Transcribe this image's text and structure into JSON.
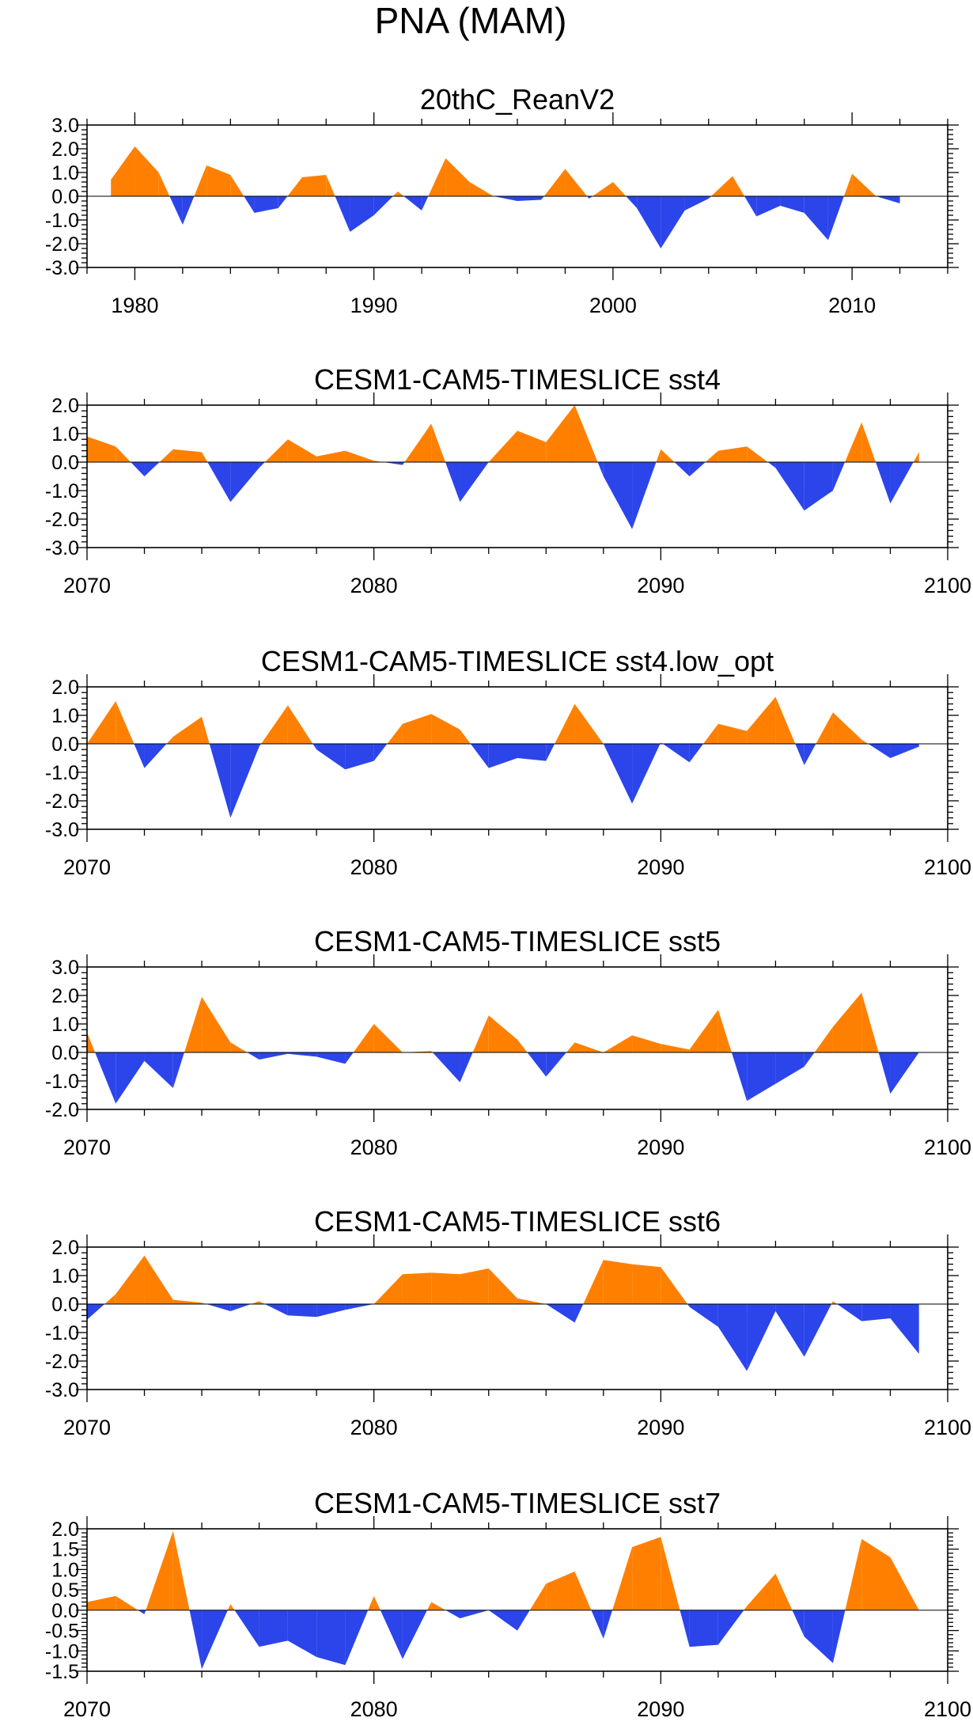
{
  "title": "PNA (MAM)",
  "colors": {
    "positive": "#ff8000",
    "negative": "#2b45ea",
    "frame": "#000000",
    "zero_line": "#000000"
  },
  "chart_data": [
    {
      "type": "area",
      "title": "20thC_ReanV2",
      "x": [
        1979,
        1980,
        1981,
        1982,
        1983,
        1984,
        1985,
        1986,
        1987,
        1988,
        1989,
        1990,
        1991,
        1992,
        1993,
        1994,
        1995,
        1996,
        1997,
        1998,
        1999,
        2000,
        2001,
        2002,
        2003,
        2004,
        2005,
        2006,
        2007,
        2008,
        2009,
        2010,
        2011,
        2012
      ],
      "values": [
        0.7,
        2.1,
        1.0,
        -1.2,
        1.3,
        0.9,
        -0.7,
        -0.5,
        0.8,
        0.9,
        -1.5,
        -0.8,
        0.2,
        -0.6,
        1.6,
        0.6,
        0.0,
        -0.2,
        -0.15,
        1.15,
        -0.1,
        0.6,
        -0.5,
        -2.2,
        -0.6,
        -0.1,
        0.85,
        -0.85,
        -0.4,
        -0.7,
        -1.85,
        0.95,
        0.0,
        -0.3
      ],
      "xlim": [
        1978,
        2014
      ],
      "xticks": [
        1980,
        1990,
        2000,
        2010
      ],
      "xtick_labels": [
        "1980",
        "1990",
        "2000",
        "2010"
      ],
      "ylim": [
        -3.0,
        3.0
      ],
      "yticks": [
        -3.0,
        -2.0,
        -1.0,
        0.0,
        1.0,
        2.0,
        3.0
      ],
      "ytick_labels": [
        "-3.0",
        "-2.0",
        "-1.0",
        "0.0",
        "1.0",
        "2.0",
        "3.0"
      ]
    },
    {
      "type": "area",
      "title": "CESM1-CAM5-TIMESLICE sst4",
      "x": [
        2070,
        2071,
        2072,
        2073,
        2074,
        2075,
        2076,
        2077,
        2078,
        2079,
        2080,
        2081,
        2082,
        2083,
        2084,
        2085,
        2086,
        2087,
        2088,
        2089,
        2090,
        2091,
        2092,
        2093,
        2094,
        2095,
        2096,
        2097,
        2098,
        2099
      ],
      "values": [
        0.9,
        0.55,
        -0.5,
        0.45,
        0.35,
        -1.4,
        -0.2,
        0.8,
        0.2,
        0.4,
        0.05,
        -0.1,
        1.35,
        -1.4,
        0.0,
        1.1,
        0.7,
        2.0,
        -0.5,
        -2.35,
        0.45,
        -0.5,
        0.4,
        0.55,
        -0.2,
        -1.7,
        -1.0,
        1.4,
        -1.45,
        0.35
      ],
      "xlim": [
        2070,
        2100
      ],
      "xticks": [
        2070,
        2080,
        2090,
        2100
      ],
      "xtick_labels": [
        "2070",
        "2080",
        "2090",
        "2100"
      ],
      "ylim": [
        -3.0,
        2.0
      ],
      "yticks": [
        -3.0,
        -2.0,
        -1.0,
        0.0,
        1.0,
        2.0
      ],
      "ytick_labels": [
        "-3.0",
        "-2.0",
        "-1.0",
        "0.0",
        "1.0",
        "2.0"
      ]
    },
    {
      "type": "area",
      "title": "CESM1-CAM5-TIMESLICE sst4.low_opt",
      "x": [
        2070,
        2071,
        2072,
        2073,
        2074,
        2075,
        2076,
        2077,
        2078,
        2079,
        2080,
        2081,
        2082,
        2083,
        2084,
        2085,
        2086,
        2087,
        2088,
        2089,
        2090,
        2091,
        2092,
        2093,
        2094,
        2095,
        2096,
        2097,
        2098,
        2099
      ],
      "values": [
        0.0,
        1.5,
        -0.85,
        0.25,
        0.95,
        -2.6,
        -0.1,
        1.35,
        -0.2,
        -0.9,
        -0.6,
        0.7,
        1.05,
        0.5,
        -0.85,
        -0.5,
        -0.6,
        1.4,
        0.0,
        -2.1,
        0.05,
        -0.65,
        0.7,
        0.45,
        1.65,
        -0.75,
        1.1,
        0.15,
        -0.5,
        -0.1
      ],
      "xlim": [
        2070,
        2100
      ],
      "xticks": [
        2070,
        2080,
        2090,
        2100
      ],
      "xtick_labels": [
        "2070",
        "2080",
        "2090",
        "2100"
      ],
      "ylim": [
        -3.0,
        2.0
      ],
      "yticks": [
        -3.0,
        -2.0,
        -1.0,
        0.0,
        1.0,
        2.0
      ],
      "ytick_labels": [
        "-3.0",
        "-2.0",
        "-1.0",
        "0.0",
        "1.0",
        "2.0"
      ]
    },
    {
      "type": "area",
      "title": "CESM1-CAM5-TIMESLICE sst5",
      "x": [
        2070,
        2071,
        2072,
        2073,
        2074,
        2075,
        2076,
        2077,
        2078,
        2079,
        2080,
        2081,
        2082,
        2083,
        2084,
        2085,
        2086,
        2087,
        2088,
        2089,
        2090,
        2091,
        2092,
        2093,
        2094,
        2095,
        2096,
        2097,
        2098,
        2099
      ],
      "values": [
        0.7,
        -1.8,
        -0.3,
        -1.25,
        1.95,
        0.35,
        -0.25,
        -0.05,
        -0.15,
        -0.4,
        1.0,
        0.0,
        0.05,
        -1.05,
        1.3,
        0.45,
        -0.85,
        0.35,
        0.0,
        0.6,
        0.3,
        0.1,
        1.5,
        -1.7,
        -1.1,
        -0.5,
        0.9,
        2.1,
        -1.45,
        0.0
      ],
      "xlim": [
        2070,
        2100
      ],
      "xticks": [
        2070,
        2080,
        2090,
        2100
      ],
      "xtick_labels": [
        "2070",
        "2080",
        "2090",
        "2100"
      ],
      "ylim": [
        -2.0,
        3.0
      ],
      "yticks": [
        -2.0,
        -1.0,
        0.0,
        1.0,
        2.0,
        3.0
      ],
      "ytick_labels": [
        "-2.0",
        "-1.0",
        "0.0",
        "1.0",
        "2.0",
        "3.0"
      ]
    },
    {
      "type": "area",
      "title": "CESM1-CAM5-TIMESLICE sst6",
      "x": [
        2070,
        2071,
        2072,
        2073,
        2074,
        2075,
        2076,
        2077,
        2078,
        2079,
        2080,
        2081,
        2082,
        2083,
        2084,
        2085,
        2086,
        2087,
        2088,
        2089,
        2090,
        2091,
        2092,
        2093,
        2094,
        2095,
        2096,
        2097,
        2098,
        2099
      ],
      "values": [
        -0.55,
        0.35,
        1.7,
        0.15,
        0.05,
        -0.25,
        0.1,
        -0.4,
        -0.45,
        -0.2,
        0.0,
        1.05,
        1.1,
        1.05,
        1.25,
        0.2,
        0.0,
        -0.65,
        1.55,
        1.4,
        1.3,
        -0.1,
        -0.8,
        -2.35,
        -0.25,
        -1.85,
        0.1,
        -0.6,
        -0.5,
        -1.75
      ],
      "xlim": [
        2070,
        2100
      ],
      "xticks": [
        2070,
        2080,
        2090,
        2100
      ],
      "xtick_labels": [
        "2070",
        "2080",
        "2090",
        "2100"
      ],
      "ylim": [
        -3.0,
        2.0
      ],
      "yticks": [
        -3.0,
        -2.0,
        -1.0,
        0.0,
        1.0,
        2.0
      ],
      "ytick_labels": [
        "-3.0",
        "-2.0",
        "-1.0",
        "0.0",
        "1.0",
        "2.0"
      ]
    },
    {
      "type": "area",
      "title": "CESM1-CAM5-TIMESLICE sst7",
      "x": [
        2070,
        2071,
        2072,
        2073,
        2074,
        2075,
        2076,
        2077,
        2078,
        2079,
        2080,
        2081,
        2082,
        2083,
        2084,
        2085,
        2086,
        2087,
        2088,
        2089,
        2090,
        2091,
        2092,
        2093,
        2094,
        2095,
        2096,
        2097,
        2098,
        2099
      ],
      "values": [
        0.2,
        0.35,
        -0.1,
        1.95,
        -1.45,
        0.15,
        -0.9,
        -0.75,
        -1.15,
        -1.35,
        0.35,
        -1.2,
        0.2,
        -0.2,
        0.0,
        -0.5,
        0.65,
        0.95,
        -0.7,
        1.55,
        1.8,
        -0.9,
        -0.85,
        0.1,
        0.9,
        -0.65,
        -1.3,
        1.75,
        1.3,
        0.0
      ],
      "xlim": [
        2070,
        2100
      ],
      "xticks": [
        2070,
        2080,
        2090,
        2100
      ],
      "xtick_labels": [
        "2070",
        "2080",
        "2090",
        "2100"
      ],
      "ylim": [
        -1.5,
        2.0
      ],
      "yticks": [
        -1.5,
        -1.0,
        -0.5,
        0.0,
        0.5,
        1.0,
        1.5,
        2.0
      ],
      "ytick_labels": [
        "-1.5",
        "-1.0",
        "-0.5",
        "0.0",
        "0.5",
        "1.0",
        "1.5",
        "2.0"
      ]
    }
  ]
}
